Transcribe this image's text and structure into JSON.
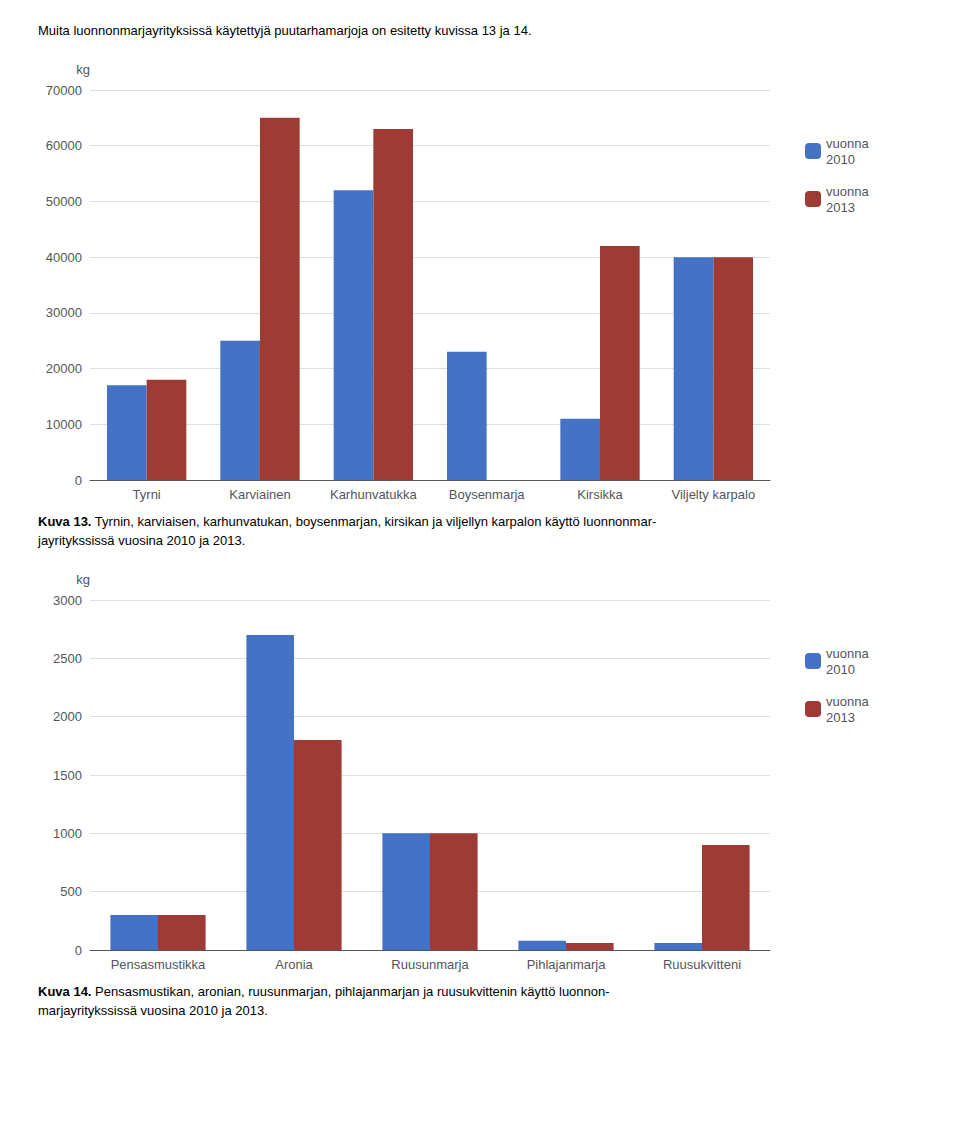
{
  "chart_data": [
    {
      "type": "bar",
      "title": "Muita luonnonmarjayrityksissä käytettyjä puutarhamarjoja on esitetty kuvissa 13 ja 14.",
      "categories": [
        "Tyrni",
        "Karviainen",
        "Karhunvatukka",
        "Boysenmarja",
        "Kirsikka",
        "Viljelty karpalo"
      ],
      "series": [
        {
          "name": "vuonna\n2010",
          "color": "#4472C4",
          "values": [
            17000,
            25000,
            52000,
            23000,
            11000,
            40000
          ]
        },
        {
          "name": "vuonna\n2013",
          "color": "#9E3B35",
          "values": [
            18000,
            65000,
            63000,
            0,
            42000,
            40000
          ]
        }
      ],
      "ylabel": "kg",
      "ylim": [
        0,
        70000
      ],
      "yticks": [
        0,
        10000,
        20000,
        30000,
        40000,
        50000,
        60000,
        70000
      ],
      "grid": true,
      "legend": "upper right",
      "annotations": [
        "Kuva 13.",
        " Tyrnin, karviaisen, karhunvatukan, boysenmarjan, kirsikan ja viljellyn karpalon käyttö luonnonmar-\njayritykssissä vuosina 2010 ja 2013."
      ]
    },
    {
      "type": "bar",
      "categories": [
        "Pensasmustikka",
        "Aronia",
        "Ruusunmarja",
        "Pihlajanmarja",
        "Ruusukvitteni"
      ],
      "series": [
        {
          "name": "vuonna\n2010",
          "color": "#4472C4",
          "values": [
            300,
            2700,
            1000,
            80,
            60
          ]
        },
        {
          "name": "vuonna\n2013",
          "color": "#9E3B35",
          "values": [
            300,
            1800,
            1000,
            60,
            900
          ]
        }
      ],
      "ylabel": "kg",
      "ylim": [
        0,
        3000
      ],
      "yticks": [
        0,
        500,
        1000,
        1500,
        2000,
        2500,
        3000
      ],
      "grid": true,
      "legend": "upper right",
      "annotations": [
        "Kuva 14.",
        " Pensasmustikan, aronian, ruusunmarjan, pihlajanmarjan ja ruusukvittenin käyttö luonnon-\nmarjayritykssissä vuosina 2010 ja 2013."
      ]
    }
  ]
}
